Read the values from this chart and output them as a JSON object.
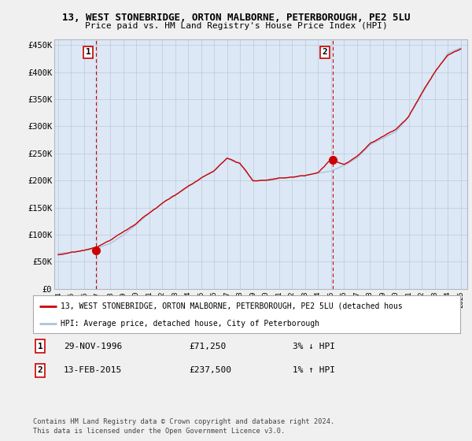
{
  "title": "13, WEST STONEBRIDGE, ORTON MALBORNE, PETERBOROUGH, PE2 5LU",
  "subtitle": "Price paid vs. HM Land Registry's House Price Index (HPI)",
  "legend_line1": "13, WEST STONEBRIDGE, ORTON MALBORNE, PETERBOROUGH, PE2 5LU (detached hous",
  "legend_line2": "HPI: Average price, detached house, City of Peterborough",
  "footnote1": "Contains HM Land Registry data © Crown copyright and database right 2024.",
  "footnote2": "This data is licensed under the Open Government Licence v3.0.",
  "annotation1": {
    "label": "1",
    "date": "29-NOV-1996",
    "price": "£71,250",
    "pct": "3% ↓ HPI"
  },
  "annotation2": {
    "label": "2",
    "date": "13-FEB-2015",
    "price": "£237,500",
    "pct": "1% ↑ HPI"
  },
  "ylim": [
    0,
    460000
  ],
  "yticks": [
    0,
    50000,
    100000,
    150000,
    200000,
    250000,
    300000,
    350000,
    400000,
    450000
  ],
  "ytick_labels": [
    "£0",
    "£50K",
    "£100K",
    "£150K",
    "£200K",
    "£250K",
    "£300K",
    "£350K",
    "£400K",
    "£450K"
  ],
  "xtick_years": [
    1994,
    1995,
    1996,
    1997,
    1998,
    1999,
    2000,
    2001,
    2002,
    2003,
    2004,
    2005,
    2006,
    2007,
    2008,
    2009,
    2010,
    2011,
    2012,
    2013,
    2014,
    2015,
    2016,
    2017,
    2018,
    2019,
    2020,
    2021,
    2022,
    2023,
    2024,
    2025
  ],
  "sale1_x": 1996.91,
  "sale1_y": 71250,
  "sale2_x": 2015.12,
  "sale2_y": 237500,
  "hpi_color": "#aac4e0",
  "price_color": "#cc0000",
  "dashed_color": "#cc0000",
  "background_color": "#f0f0f0",
  "plot_bg_color": "#dce8f5",
  "grid_color": "#c0c8d8"
}
